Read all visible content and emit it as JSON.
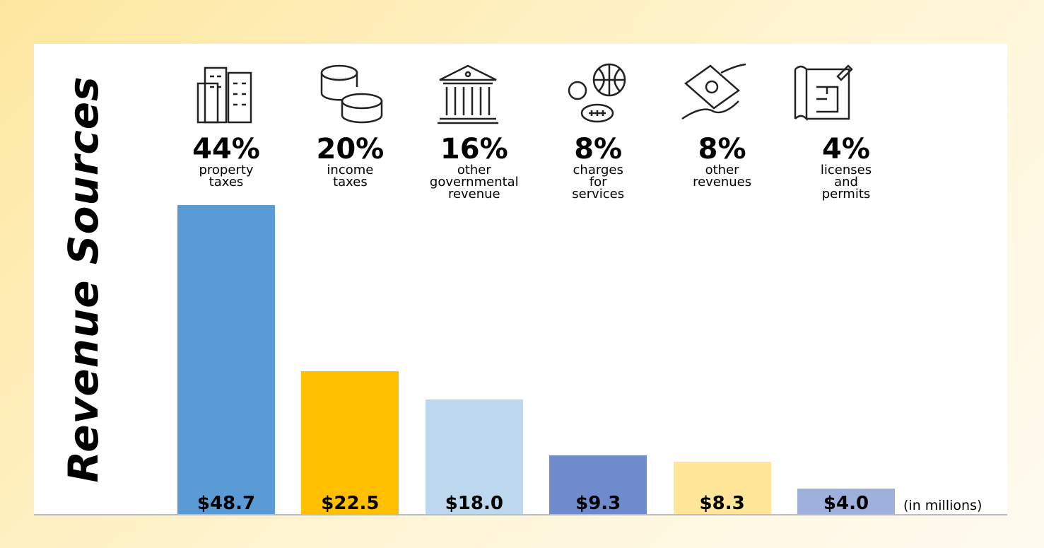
{
  "chart_data": {
    "type": "bar",
    "title": "Revenue Sources",
    "categories": [
      "property taxes",
      "income taxes",
      "other governmental revenue",
      "charges for services",
      "other revenues",
      "licenses and permits"
    ],
    "shares": [
      44,
      20,
      16,
      8,
      8,
      4
    ],
    "share_labels": [
      "44%",
      "20%",
      "16%",
      "8%",
      "8%",
      "4%"
    ],
    "values": [
      48.7,
      22.5,
      18.0,
      9.3,
      8.3,
      4.0
    ],
    "value_labels": [
      "$48.7",
      "$22.5",
      "$18.0",
      "$9.3",
      "$8.3",
      "$4.0"
    ],
    "colors": [
      "#5b9bd5",
      "#ffc000",
      "#bdd7ee",
      "#6f8bcb",
      "#ffe699",
      "#9fb0dc"
    ],
    "unit_note": "(in millions)"
  }
}
